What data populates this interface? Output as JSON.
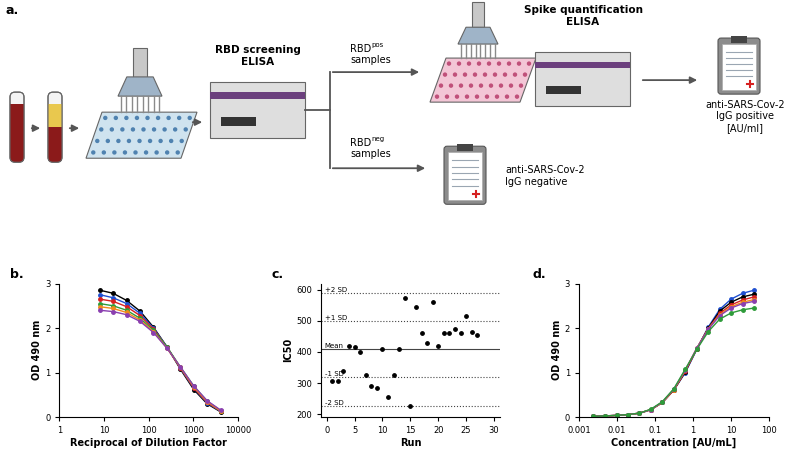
{
  "diagram": {
    "panel": "a.",
    "screening_title": "RBD screening\nELISA",
    "quantification_title": "Spike quantification\nELISA",
    "positive_branch": {
      "base": "RBD",
      "superscript": "pos",
      "second_line": "samples"
    },
    "negative_branch": {
      "base": "RBD",
      "superscript": "neg",
      "second_line": "samples"
    },
    "positive_result": "anti-SARS-Cov-2\nIgG positive\n[AU/ml]",
    "negative_result": "anti-SARS-Cov-2\nIgG negative"
  },
  "chart_data": [
    {
      "panel": "b.",
      "type": "line",
      "x_label": "Reciprocal of Dilution Factor",
      "y_label": "OD 490 nm",
      "log": "x",
      "marker": "circle",
      "x": [
        8,
        16,
        32,
        64,
        128,
        256,
        512,
        1024,
        2048,
        4096
      ],
      "series": [
        {
          "color": "#000000",
          "values": [
            2.85,
            2.78,
            2.62,
            2.38,
            2.02,
            1.58,
            1.08,
            0.62,
            0.3,
            0.12
          ]
        },
        {
          "color": "#1f4fd0",
          "values": [
            2.75,
            2.68,
            2.55,
            2.33,
            2.0,
            1.58,
            1.1,
            0.65,
            0.32,
            0.13
          ]
        },
        {
          "color": "#d62020",
          "values": [
            2.65,
            2.6,
            2.48,
            2.28,
            1.98,
            1.57,
            1.11,
            0.66,
            0.33,
            0.14
          ]
        },
        {
          "color": "#2e9b3a",
          "values": [
            2.55,
            2.5,
            2.4,
            2.22,
            1.95,
            1.58,
            1.13,
            0.7,
            0.36,
            0.15
          ]
        },
        {
          "color": "#f08a1c",
          "values": [
            2.48,
            2.44,
            2.35,
            2.18,
            1.92,
            1.55,
            1.12,
            0.68,
            0.35,
            0.14
          ]
        },
        {
          "color": "#8a3fb0",
          "values": [
            2.4,
            2.37,
            2.3,
            2.15,
            1.9,
            1.55,
            1.13,
            0.7,
            0.37,
            0.16
          ]
        }
      ],
      "xlim": [
        1,
        10000
      ],
      "xticks": [
        1,
        10,
        100,
        1000,
        10000
      ],
      "ylim": [
        0,
        3
      ],
      "yticks": [
        0,
        1,
        2,
        3
      ]
    },
    {
      "panel": "c.",
      "type": "scatter",
      "x_label": "Run",
      "y_label": "IC50",
      "color": "#000000",
      "marker": "circle",
      "x": [
        1,
        2,
        3,
        4,
        5,
        6,
        7,
        8,
        9,
        10,
        11,
        12,
        13,
        14,
        15,
        16,
        17,
        18,
        19,
        20,
        21,
        22,
        23,
        24,
        25,
        26,
        27
      ],
      "values": [
        305,
        305,
        340,
        420,
        415,
        400,
        325,
        290,
        285,
        410,
        255,
        325,
        410,
        575,
        225,
        545,
        460,
        430,
        560,
        420,
        460,
        460,
        475,
        460,
        515,
        465,
        455
      ],
      "reference_lines": [
        {
          "label": "+2 SD",
          "value": 590,
          "line_style": "dotted"
        },
        {
          "label": "+1 SD",
          "value": 500,
          "line_style": "dotted"
        },
        {
          "label": "Mean",
          "value": 410,
          "line_style": "solid"
        },
        {
          "label": "-1 SD",
          "value": 320,
          "line_style": "dotted"
        },
        {
          "label": "-2 SD",
          "value": 225,
          "line_style": "dotted"
        }
      ],
      "xlim": [
        -1,
        31
      ],
      "xticks": [
        0,
        5,
        10,
        15,
        20,
        25,
        30
      ],
      "ylim": [
        190,
        620
      ],
      "yticks": [
        200,
        300,
        400,
        500,
        600
      ]
    },
    {
      "panel": "d.",
      "type": "line",
      "x_label": "Concentration [AU/mL]",
      "y_label": "OD 490 nm",
      "log": "x",
      "marker": "circle",
      "x": [
        0.0024,
        0.0049,
        0.0098,
        0.0195,
        0.039,
        0.078,
        0.156,
        0.3125,
        0.625,
        1.25,
        2.5,
        5,
        10,
        20,
        40
      ],
      "series": [
        {
          "color": "#1f4fd0",
          "values": [
            0.02,
            0.03,
            0.04,
            0.06,
            0.09,
            0.17,
            0.33,
            0.61,
            1.0,
            1.52,
            2.02,
            2.42,
            2.65,
            2.78,
            2.85
          ]
        },
        {
          "color": "#000000",
          "values": [
            0.02,
            0.03,
            0.04,
            0.06,
            0.09,
            0.17,
            0.33,
            0.61,
            1.02,
            1.54,
            2.0,
            2.38,
            2.58,
            2.7,
            2.76
          ]
        },
        {
          "color": "#d62020",
          "values": [
            0.02,
            0.03,
            0.04,
            0.06,
            0.09,
            0.17,
            0.33,
            0.61,
            1.03,
            1.53,
            1.99,
            2.33,
            2.52,
            2.63,
            2.7
          ]
        },
        {
          "color": "#f08a1c",
          "values": [
            0.02,
            0.03,
            0.04,
            0.06,
            0.09,
            0.17,
            0.33,
            0.62,
            1.05,
            1.55,
            1.98,
            2.3,
            2.48,
            2.58,
            2.64
          ]
        },
        {
          "color": "#8a3fb0",
          "values": [
            0.02,
            0.03,
            0.04,
            0.06,
            0.09,
            0.17,
            0.34,
            0.63,
            1.06,
            1.55,
            1.97,
            2.28,
            2.45,
            2.55,
            2.6
          ]
        },
        {
          "color": "#2e9b3a",
          "values": [
            0.02,
            0.03,
            0.04,
            0.06,
            0.09,
            0.18,
            0.35,
            0.64,
            1.08,
            1.52,
            1.92,
            2.2,
            2.34,
            2.41,
            2.45
          ]
        }
      ],
      "xlim": [
        0.001,
        100
      ],
      "xticks": [
        0.001,
        0.01,
        0.1,
        1,
        10,
        100
      ],
      "ylim": [
        0,
        3
      ],
      "yticks": [
        0,
        1,
        2,
        3
      ]
    }
  ]
}
